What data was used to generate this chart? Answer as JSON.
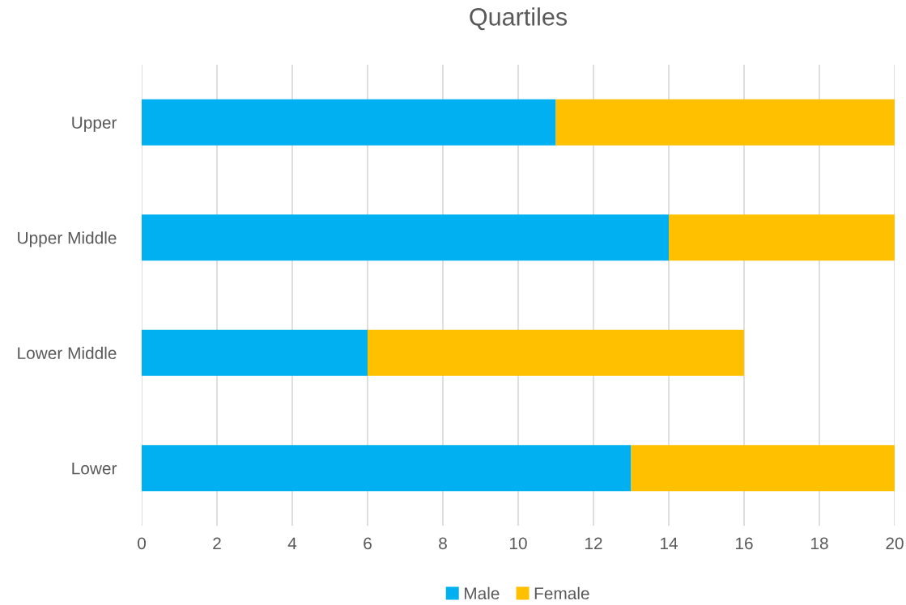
{
  "chart_data": {
    "type": "bar",
    "title": "Quartiles",
    "orientation": "horizontal",
    "stacked": true,
    "categories": [
      "Upper",
      "Upper Middle",
      "Lower Middle",
      "Lower"
    ],
    "series": [
      {
        "name": "Male",
        "color": "#00b0f0",
        "values": [
          11,
          14,
          6,
          13
        ]
      },
      {
        "name": "Female",
        "color": "#ffc000",
        "values": [
          9,
          6,
          10,
          7
        ]
      }
    ],
    "xlim": [
      0,
      20
    ],
    "xticks": [
      0,
      2,
      4,
      6,
      8,
      10,
      12,
      14,
      16,
      18,
      20
    ],
    "grid": "x",
    "legend": "bottom"
  }
}
